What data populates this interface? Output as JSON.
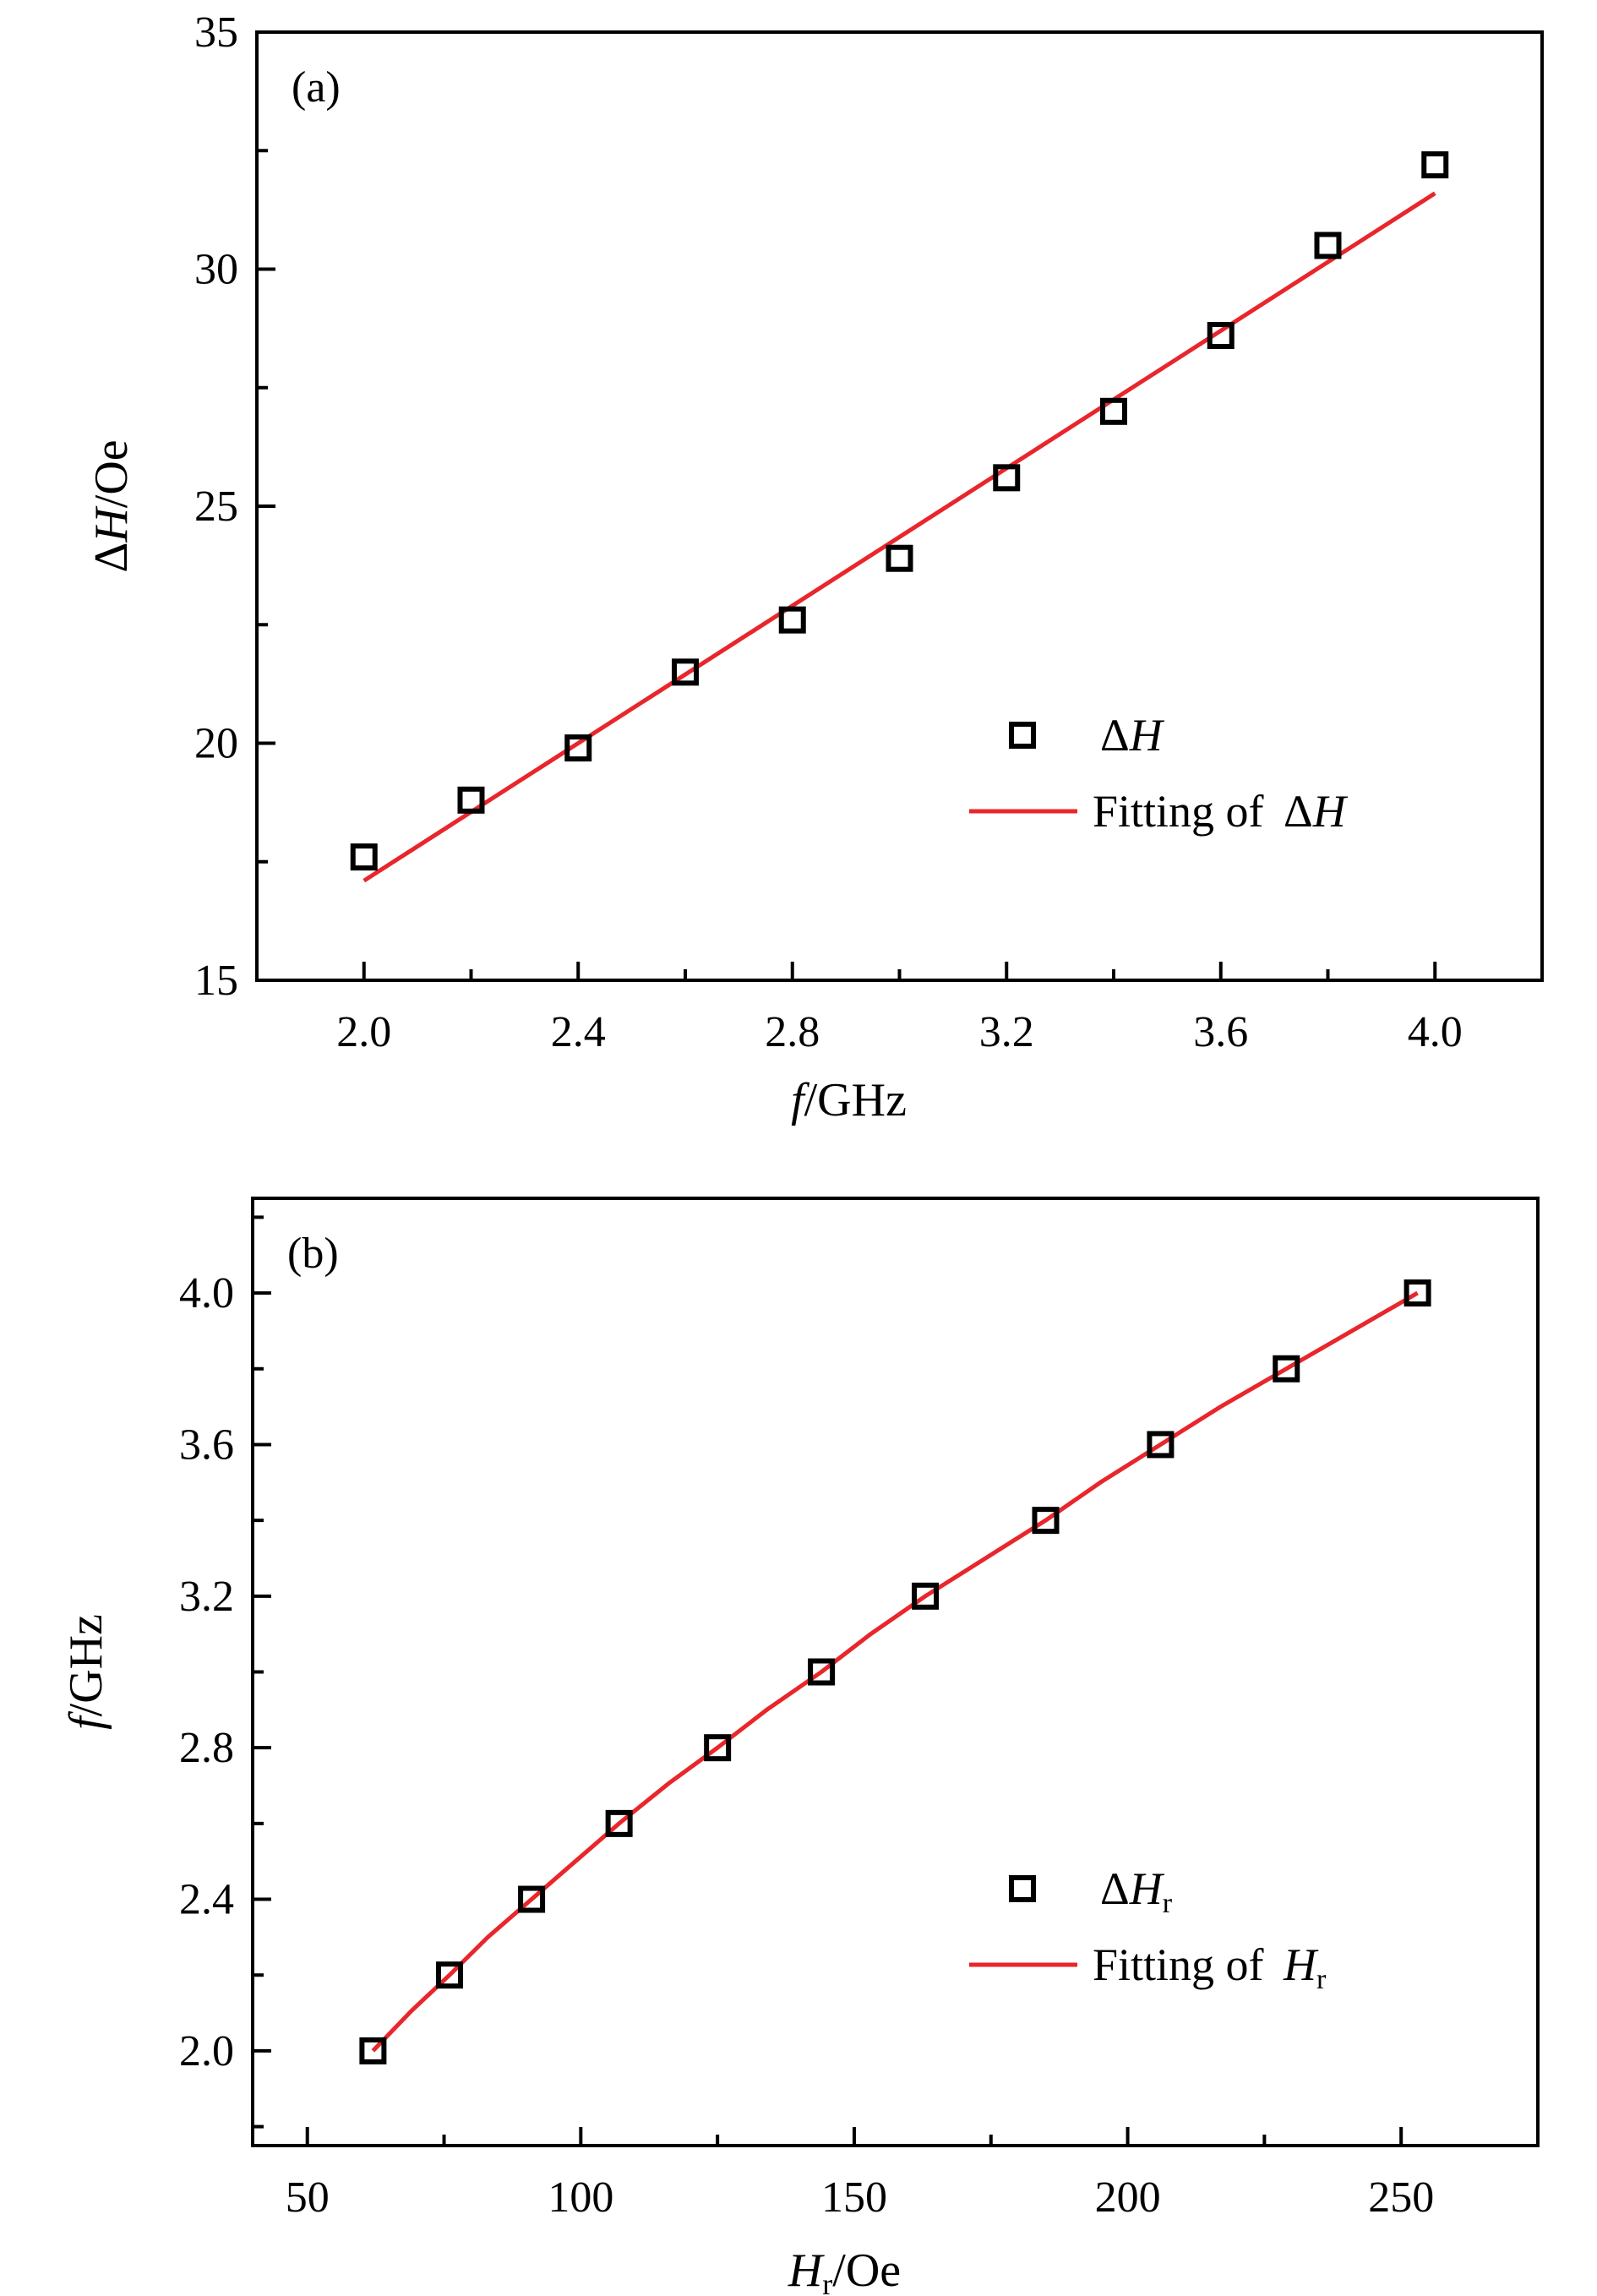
{
  "chart_data": [
    {
      "type": "scatter",
      "panel_label": "(a)",
      "xlabel": "f/GHz",
      "xlabel_parts": {
        "italic": "f",
        "rest": "/GHz"
      },
      "ylabel": "ΔH/Oe",
      "ylabel_parts": {
        "delta": "Δ",
        "italic": "H",
        "rest": "/Oe"
      },
      "xlim": [
        1.8,
        4.2
      ],
      "ylim": [
        15,
        35
      ],
      "xticks": [
        2.0,
        2.4,
        2.8,
        3.2,
        3.6,
        4.0
      ],
      "xtick_labels": [
        "2.0",
        "2.4",
        "2.8",
        "3.2",
        "3.6",
        "4.0"
      ],
      "xminor_step": 0.2,
      "yticks": [
        15,
        20,
        25,
        30,
        35
      ],
      "ytick_labels": [
        "15",
        "20",
        "25",
        "30",
        "35"
      ],
      "yminor_step": 2.5,
      "grid": false,
      "legend_position": "lower-right",
      "series": [
        {
          "name": "ΔH",
          "legend_delta": "Δ",
          "legend_italic": "H",
          "legend_sub": "",
          "kind": "markers",
          "marker": "open-square",
          "color": "#000000",
          "x": [
            2.0,
            2.2,
            2.4,
            2.6,
            2.8,
            3.0,
            3.2,
            3.4,
            3.6,
            3.8,
            4.0
          ],
          "y": [
            17.6,
            18.8,
            19.9,
            21.5,
            22.6,
            23.9,
            25.6,
            27.0,
            28.6,
            30.5,
            32.2
          ]
        },
        {
          "name": "Fitting of ΔH",
          "legend_text": "Fitting of ",
          "legend_delta": "Δ",
          "legend_italic": "H",
          "legend_sub": "",
          "kind": "line",
          "color": "#e8262b",
          "x": [
            2.0,
            4.0
          ],
          "y": [
            17.1,
            31.6
          ]
        }
      ]
    },
    {
      "type": "scatter",
      "panel_label": "(b)",
      "xlabel": "Hr/Oe",
      "xlabel_parts": {
        "italic": "H",
        "sub": "r",
        "rest": "/Oe"
      },
      "ylabel": "f/GHz",
      "ylabel_parts": {
        "delta": "",
        "italic": "f",
        "rest": "/GHz"
      },
      "xlim": [
        40,
        275
      ],
      "ylim": [
        1.75,
        4.25
      ],
      "xticks": [
        50,
        100,
        150,
        200,
        250
      ],
      "xtick_labels": [
        "50",
        "100",
        "150",
        "200",
        "250"
      ],
      "xminor_step": 25,
      "yticks": [
        2.0,
        2.4,
        2.8,
        3.2,
        3.6,
        4.0
      ],
      "ytick_labels": [
        "2.0",
        "2.4",
        "2.8",
        "3.2",
        "3.6",
        "4.0"
      ],
      "yminor_step": 0.2,
      "grid": false,
      "legend_position": "lower-right",
      "series": [
        {
          "name": "ΔHr",
          "legend_delta": "Δ",
          "legend_italic": "H",
          "legend_sub": "r",
          "kind": "markers",
          "marker": "open-square",
          "color": "#000000",
          "x": [
            62,
            76,
            91,
            107,
            125,
            144,
            163,
            185,
            206,
            229,
            253
          ],
          "y": [
            2.0,
            2.2,
            2.4,
            2.6,
            2.8,
            3.0,
            3.2,
            3.4,
            3.6,
            3.8,
            4.0
          ]
        },
        {
          "name": "Fitting of Hr",
          "legend_text": "Fitting of ",
          "legend_delta": "",
          "legend_italic": "H",
          "legend_sub": "r",
          "kind": "line",
          "color": "#e8262b",
          "x": [
            62,
            69,
            76,
            83,
            91,
            99,
            107,
            116,
            125,
            134,
            144,
            153,
            163,
            174,
            185,
            195,
            206,
            217,
            229,
            241,
            253
          ],
          "y": [
            2.0,
            2.105,
            2.2,
            2.3,
            2.4,
            2.5,
            2.6,
            2.705,
            2.8,
            2.9,
            3.0,
            3.1,
            3.2,
            3.3,
            3.4,
            3.5,
            3.6,
            3.7,
            3.8,
            3.9,
            4.0
          ]
        }
      ]
    }
  ]
}
